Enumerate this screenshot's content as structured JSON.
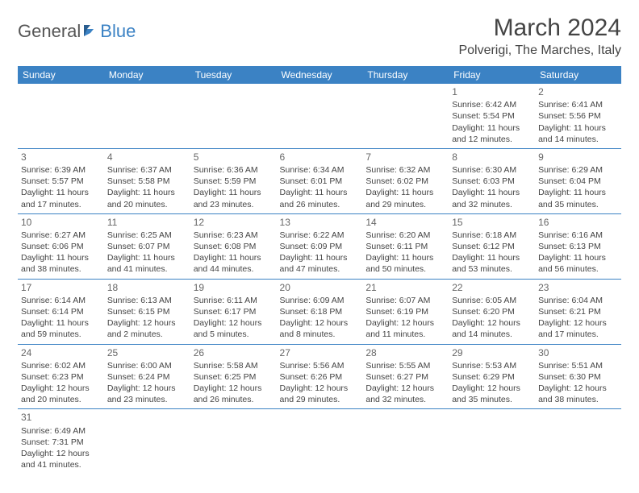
{
  "logo": {
    "text1": "General",
    "text2": "Blue"
  },
  "title": "March 2024",
  "location": "Polverigi, The Marches, Italy",
  "colors": {
    "header_bg": "#3b82c4",
    "header_text": "#ffffff",
    "border": "#3b82c4",
    "text": "#444444"
  },
  "weekdays": [
    "Sunday",
    "Monday",
    "Tuesday",
    "Wednesday",
    "Thursday",
    "Friday",
    "Saturday"
  ],
  "weeks": [
    [
      null,
      null,
      null,
      null,
      null,
      {
        "d": "1",
        "sr": "Sunrise: 6:42 AM",
        "ss": "Sunset: 5:54 PM",
        "dl1": "Daylight: 11 hours",
        "dl2": "and 12 minutes."
      },
      {
        "d": "2",
        "sr": "Sunrise: 6:41 AM",
        "ss": "Sunset: 5:56 PM",
        "dl1": "Daylight: 11 hours",
        "dl2": "and 14 minutes."
      }
    ],
    [
      {
        "d": "3",
        "sr": "Sunrise: 6:39 AM",
        "ss": "Sunset: 5:57 PM",
        "dl1": "Daylight: 11 hours",
        "dl2": "and 17 minutes."
      },
      {
        "d": "4",
        "sr": "Sunrise: 6:37 AM",
        "ss": "Sunset: 5:58 PM",
        "dl1": "Daylight: 11 hours",
        "dl2": "and 20 minutes."
      },
      {
        "d": "5",
        "sr": "Sunrise: 6:36 AM",
        "ss": "Sunset: 5:59 PM",
        "dl1": "Daylight: 11 hours",
        "dl2": "and 23 minutes."
      },
      {
        "d": "6",
        "sr": "Sunrise: 6:34 AM",
        "ss": "Sunset: 6:01 PM",
        "dl1": "Daylight: 11 hours",
        "dl2": "and 26 minutes."
      },
      {
        "d": "7",
        "sr": "Sunrise: 6:32 AM",
        "ss": "Sunset: 6:02 PM",
        "dl1": "Daylight: 11 hours",
        "dl2": "and 29 minutes."
      },
      {
        "d": "8",
        "sr": "Sunrise: 6:30 AM",
        "ss": "Sunset: 6:03 PM",
        "dl1": "Daylight: 11 hours",
        "dl2": "and 32 minutes."
      },
      {
        "d": "9",
        "sr": "Sunrise: 6:29 AM",
        "ss": "Sunset: 6:04 PM",
        "dl1": "Daylight: 11 hours",
        "dl2": "and 35 minutes."
      }
    ],
    [
      {
        "d": "10",
        "sr": "Sunrise: 6:27 AM",
        "ss": "Sunset: 6:06 PM",
        "dl1": "Daylight: 11 hours",
        "dl2": "and 38 minutes."
      },
      {
        "d": "11",
        "sr": "Sunrise: 6:25 AM",
        "ss": "Sunset: 6:07 PM",
        "dl1": "Daylight: 11 hours",
        "dl2": "and 41 minutes."
      },
      {
        "d": "12",
        "sr": "Sunrise: 6:23 AM",
        "ss": "Sunset: 6:08 PM",
        "dl1": "Daylight: 11 hours",
        "dl2": "and 44 minutes."
      },
      {
        "d": "13",
        "sr": "Sunrise: 6:22 AM",
        "ss": "Sunset: 6:09 PM",
        "dl1": "Daylight: 11 hours",
        "dl2": "and 47 minutes."
      },
      {
        "d": "14",
        "sr": "Sunrise: 6:20 AM",
        "ss": "Sunset: 6:11 PM",
        "dl1": "Daylight: 11 hours",
        "dl2": "and 50 minutes."
      },
      {
        "d": "15",
        "sr": "Sunrise: 6:18 AM",
        "ss": "Sunset: 6:12 PM",
        "dl1": "Daylight: 11 hours",
        "dl2": "and 53 minutes."
      },
      {
        "d": "16",
        "sr": "Sunrise: 6:16 AM",
        "ss": "Sunset: 6:13 PM",
        "dl1": "Daylight: 11 hours",
        "dl2": "and 56 minutes."
      }
    ],
    [
      {
        "d": "17",
        "sr": "Sunrise: 6:14 AM",
        "ss": "Sunset: 6:14 PM",
        "dl1": "Daylight: 11 hours",
        "dl2": "and 59 minutes."
      },
      {
        "d": "18",
        "sr": "Sunrise: 6:13 AM",
        "ss": "Sunset: 6:15 PM",
        "dl1": "Daylight: 12 hours",
        "dl2": "and 2 minutes."
      },
      {
        "d": "19",
        "sr": "Sunrise: 6:11 AM",
        "ss": "Sunset: 6:17 PM",
        "dl1": "Daylight: 12 hours",
        "dl2": "and 5 minutes."
      },
      {
        "d": "20",
        "sr": "Sunrise: 6:09 AM",
        "ss": "Sunset: 6:18 PM",
        "dl1": "Daylight: 12 hours",
        "dl2": "and 8 minutes."
      },
      {
        "d": "21",
        "sr": "Sunrise: 6:07 AM",
        "ss": "Sunset: 6:19 PM",
        "dl1": "Daylight: 12 hours",
        "dl2": "and 11 minutes."
      },
      {
        "d": "22",
        "sr": "Sunrise: 6:05 AM",
        "ss": "Sunset: 6:20 PM",
        "dl1": "Daylight: 12 hours",
        "dl2": "and 14 minutes."
      },
      {
        "d": "23",
        "sr": "Sunrise: 6:04 AM",
        "ss": "Sunset: 6:21 PM",
        "dl1": "Daylight: 12 hours",
        "dl2": "and 17 minutes."
      }
    ],
    [
      {
        "d": "24",
        "sr": "Sunrise: 6:02 AM",
        "ss": "Sunset: 6:23 PM",
        "dl1": "Daylight: 12 hours",
        "dl2": "and 20 minutes."
      },
      {
        "d": "25",
        "sr": "Sunrise: 6:00 AM",
        "ss": "Sunset: 6:24 PM",
        "dl1": "Daylight: 12 hours",
        "dl2": "and 23 minutes."
      },
      {
        "d": "26",
        "sr": "Sunrise: 5:58 AM",
        "ss": "Sunset: 6:25 PM",
        "dl1": "Daylight: 12 hours",
        "dl2": "and 26 minutes."
      },
      {
        "d": "27",
        "sr": "Sunrise: 5:56 AM",
        "ss": "Sunset: 6:26 PM",
        "dl1": "Daylight: 12 hours",
        "dl2": "and 29 minutes."
      },
      {
        "d": "28",
        "sr": "Sunrise: 5:55 AM",
        "ss": "Sunset: 6:27 PM",
        "dl1": "Daylight: 12 hours",
        "dl2": "and 32 minutes."
      },
      {
        "d": "29",
        "sr": "Sunrise: 5:53 AM",
        "ss": "Sunset: 6:29 PM",
        "dl1": "Daylight: 12 hours",
        "dl2": "and 35 minutes."
      },
      {
        "d": "30",
        "sr": "Sunrise: 5:51 AM",
        "ss": "Sunset: 6:30 PM",
        "dl1": "Daylight: 12 hours",
        "dl2": "and 38 minutes."
      }
    ],
    [
      {
        "d": "31",
        "sr": "Sunrise: 6:49 AM",
        "ss": "Sunset: 7:31 PM",
        "dl1": "Daylight: 12 hours",
        "dl2": "and 41 minutes."
      },
      null,
      null,
      null,
      null,
      null,
      null
    ]
  ]
}
